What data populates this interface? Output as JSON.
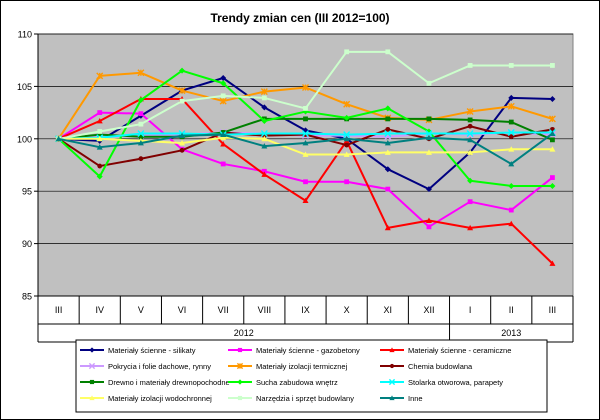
{
  "chart_data": {
    "type": "line",
    "title": "Trendy zmian cen (III 2012=100)",
    "categories": [
      "III",
      "IV",
      "V",
      "VI",
      "VII",
      "VIII",
      "IX",
      "X",
      "XI",
      "XII",
      "I",
      "II",
      "III"
    ],
    "year_labels": [
      {
        "label": "2012",
        "from_index": 0,
        "to_index": 9
      },
      {
        "label": "2013",
        "from_index": 10,
        "to_index": 12
      }
    ],
    "ylim": [
      85,
      110
    ],
    "yticks": [
      85,
      90,
      95,
      100,
      105,
      110
    ],
    "grid": true,
    "plot_background": "#c0c0c0",
    "legend_position": "bottom",
    "series": [
      {
        "name": "Materiały ścienne - silikaty",
        "color": "#000080",
        "marker": "diamond",
        "values": [
          100,
          99.8,
          102.2,
          104.6,
          105.8,
          103.0,
          100.8,
          100.0,
          97.1,
          95.2,
          98.7,
          103.9,
          103.8
        ]
      },
      {
        "name": "Materiały ścienne - gazobetony",
        "color": "#ff00ff",
        "marker": "square",
        "values": [
          100,
          102.5,
          102.4,
          99.0,
          97.6,
          96.9,
          95.9,
          95.9,
          95.2,
          91.6,
          94.0,
          93.2,
          96.3
        ]
      },
      {
        "name": "Materiały ścienne - ceramiczne",
        "color": "#ff0000",
        "marker": "triangle",
        "values": [
          100,
          101.7,
          103.8,
          103.8,
          99.5,
          96.6,
          94.1,
          99.8,
          91.5,
          92.2,
          91.5,
          91.9,
          88.1
        ]
      },
      {
        "name": "Pokrycia i folie dachowe, rynny",
        "color": "#cc99ff",
        "marker": "x",
        "values": [
          100,
          100.2,
          100.3,
          100.4,
          100.6,
          100.5,
          100.3,
          100.3,
          100.2,
          100.5,
          100.4,
          100.6,
          100.4
        ]
      },
      {
        "name": "Materiały izolacji termicznej",
        "color": "#ff9900",
        "marker": "star",
        "values": [
          100,
          106.0,
          106.3,
          104.6,
          103.6,
          104.5,
          104.9,
          103.3,
          102.0,
          101.8,
          102.6,
          103.1,
          101.9
        ]
      },
      {
        "name": "Chemia budowlana",
        "color": "#800000",
        "marker": "circle",
        "values": [
          100,
          97.4,
          98.1,
          98.9,
          100.6,
          100.3,
          100.4,
          99.4,
          100.9,
          100.0,
          101.2,
          100.2,
          100.9
        ]
      },
      {
        "name": "Drewno i materiały drewnopochodne",
        "color": "#008000",
        "marker": "square",
        "values": [
          100,
          100.4,
          100.2,
          100.2,
          100.6,
          101.9,
          101.9,
          101.9,
          101.9,
          101.9,
          101.8,
          101.6,
          99.9
        ]
      },
      {
        "name": "Sucha zabudowa wnętrz",
        "color": "#00ff00",
        "marker": "diamond",
        "values": [
          100,
          96.4,
          103.7,
          106.5,
          105.3,
          101.7,
          102.6,
          102.0,
          102.9,
          100.7,
          96.0,
          95.5,
          95.5
        ]
      },
      {
        "name": "Stolarka otworowa, parapety",
        "color": "#00ffff",
        "marker": "x",
        "values": [
          100,
          100.1,
          100.5,
          100.5,
          100.4,
          100.5,
          100.5,
          100.4,
          100.5,
          100.5,
          100.5,
          100.6,
          100.6
        ]
      },
      {
        "name": "Materiały izolacji wodochronnej",
        "color": "#ffff66",
        "marker": "triangle",
        "values": [
          100,
          100.0,
          99.8,
          99.6,
          100.1,
          100.0,
          98.5,
          98.5,
          98.7,
          98.7,
          98.7,
          99.0,
          99.0
        ]
      },
      {
        "name": "Narzędzia i sprzęt budowlany",
        "color": "#ccffcc",
        "marker": "square",
        "values": [
          100,
          100.7,
          101.4,
          103.6,
          104.1,
          103.9,
          102.9,
          108.3,
          108.3,
          105.3,
          107.0,
          107.0,
          107.0
        ]
      },
      {
        "name": "Inne",
        "color": "#008080",
        "marker": "triangle",
        "values": [
          100,
          99.2,
          99.6,
          100.3,
          100.4,
          99.3,
          99.6,
          100.0,
          99.6,
          100.1,
          99.9,
          97.6,
          100.5
        ]
      }
    ]
  }
}
